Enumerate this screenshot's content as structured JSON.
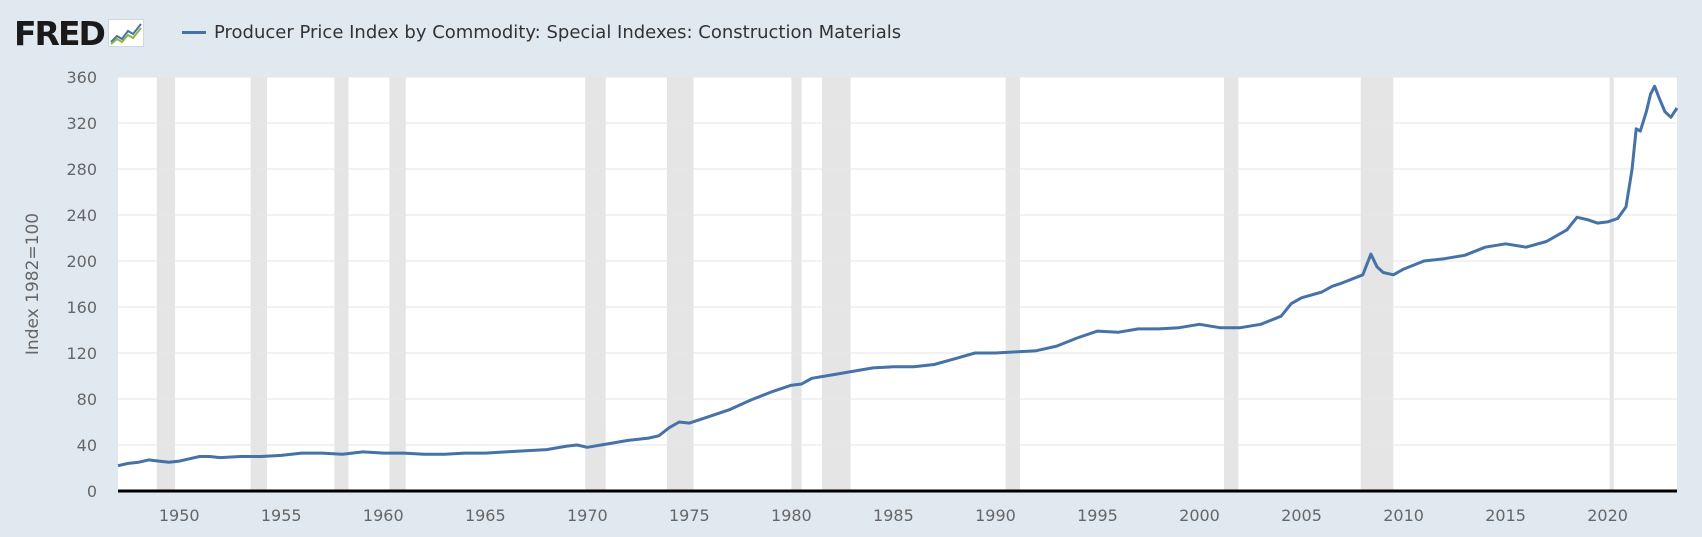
{
  "brand": {
    "logo_text": "FRED"
  },
  "colors": {
    "page_bg": "#e1e9f0",
    "plot_bg": "#ffffff",
    "series": "#4572a7",
    "recession": "#e5e5e5",
    "grid": "#e6e6e6",
    "axis": "#000000",
    "tick_text": "#666666"
  },
  "chart_data": {
    "type": "line",
    "title": "",
    "xlabel": "",
    "ylabel": "Index 1982=100",
    "ylim": [
      0,
      360
    ],
    "xlim": [
      1947.0,
      2023.4
    ],
    "y_ticks": [
      0,
      40,
      80,
      120,
      160,
      200,
      240,
      280,
      320,
      360
    ],
    "x_ticks": [
      1950,
      1955,
      1960,
      1965,
      1970,
      1975,
      1980,
      1985,
      1990,
      1995,
      2000,
      2005,
      2010,
      2015,
      2020
    ],
    "grid": true,
    "legend_position": "top-left",
    "recessions": [
      [
        1948.9,
        1949.8
      ],
      [
        1953.5,
        1954.3
      ],
      [
        1957.6,
        1958.3
      ],
      [
        1960.3,
        1961.1
      ],
      [
        1969.9,
        1970.9
      ],
      [
        1973.9,
        1975.2
      ],
      [
        1980.0,
        1980.5
      ],
      [
        1981.5,
        1982.9
      ],
      [
        1990.5,
        1991.2
      ],
      [
        2001.2,
        2001.9
      ],
      [
        2007.9,
        2009.5
      ],
      [
        2020.1,
        2020.3
      ]
    ],
    "series": [
      {
        "name": "Producer Price Index by Commodity: Special Indexes: Construction Materials",
        "x": [
          1947.0,
          1947.5,
          1948.0,
          1948.5,
          1949.0,
          1949.5,
          1950.0,
          1950.5,
          1951.0,
          1951.5,
          1952.0,
          1953.0,
          1954.0,
          1955.0,
          1956.0,
          1957.0,
          1958.0,
          1959.0,
          1960.0,
          1961.0,
          1962.0,
          1963.0,
          1964.0,
          1965.0,
          1966.0,
          1967.0,
          1968.0,
          1969.0,
          1969.5,
          1970.0,
          1971.0,
          1972.0,
          1973.0,
          1973.5,
          1974.0,
          1974.5,
          1975.0,
          1976.0,
          1977.0,
          1978.0,
          1979.0,
          1980.0,
          1980.5,
          1981.0,
          1982.0,
          1983.0,
          1984.0,
          1985.0,
          1986.0,
          1987.0,
          1988.0,
          1989.0,
          1990.0,
          1991.0,
          1992.0,
          1993.0,
          1994.0,
          1995.0,
          1996.0,
          1997.0,
          1998.0,
          1999.0,
          2000.0,
          2001.0,
          2002.0,
          2003.0,
          2004.0,
          2004.5,
          2005.0,
          2006.0,
          2006.5,
          2007.0,
          2008.0,
          2008.4,
          2008.7,
          2009.0,
          2009.5,
          2010.0,
          2011.0,
          2012.0,
          2013.0,
          2014.0,
          2015.0,
          2016.0,
          2017.0,
          2018.0,
          2018.5,
          2019.0,
          2019.5,
          2020.0,
          2020.5,
          2020.9,
          2021.2,
          2021.4,
          2021.6,
          2021.9,
          2022.1,
          2022.3,
          2022.5,
          2022.8,
          2023.1,
          2023.4
        ],
        "values": [
          22,
          24,
          25,
          27,
          26,
          25,
          26,
          28,
          30,
          30,
          29,
          30,
          30,
          31,
          33,
          33,
          32,
          34,
          33,
          33,
          32,
          32,
          33,
          33,
          34,
          35,
          36,
          39,
          40,
          38,
          41,
          44,
          46,
          48,
          55,
          60,
          59,
          65,
          71,
          79,
          86,
          92,
          93,
          98,
          101,
          104,
          107,
          108,
          108,
          110,
          115,
          120,
          120,
          121,
          122,
          126,
          133,
          139,
          138,
          141,
          141,
          142,
          145,
          142,
          142,
          145,
          152,
          163,
          168,
          173,
          178,
          181,
          188,
          206,
          195,
          190,
          188,
          193,
          200,
          202,
          205,
          212,
          215,
          212,
          217,
          227,
          238,
          236,
          233,
          234,
          237,
          247,
          280,
          315,
          313,
          330,
          345,
          352,
          343,
          330,
          325,
          333
        ]
      }
    ]
  }
}
